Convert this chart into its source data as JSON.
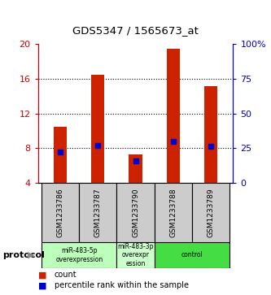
{
  "title": "GDS5347 / 1565673_at",
  "categories": [
    "GSM1233786",
    "GSM1233787",
    "GSM1233790",
    "GSM1233788",
    "GSM1233789"
  ],
  "bar_values": [
    10.5,
    16.5,
    7.3,
    19.5,
    15.2
  ],
  "blue_marker_values": [
    7.6,
    8.3,
    6.5,
    8.8,
    8.2
  ],
  "ylim_left": [
    4,
    20
  ],
  "ylim_right": [
    0,
    100
  ],
  "left_ticks": [
    4,
    8,
    12,
    16,
    20
  ],
  "right_ticks": [
    0,
    25,
    50,
    75,
    100
  ],
  "right_tick_labels": [
    "0",
    "25",
    "50",
    "75",
    "100%"
  ],
  "bar_color": "#cc2200",
  "blue_marker_color": "#0000cc",
  "protocol_groups": [
    {
      "label": "miR-483-5p\noverexpression",
      "indices": [
        0,
        1
      ],
      "color": "#bbffbb"
    },
    {
      "label": "miR-483-3p\noverexpr\nession",
      "indices": [
        2
      ],
      "color": "#ccffcc"
    },
    {
      "label": "control",
      "indices": [
        3,
        4
      ],
      "color": "#44dd44"
    }
  ],
  "legend_count_label": "count",
  "legend_percentile_label": "percentile rank within the sample",
  "protocol_label": "protocol",
  "bar_bottom": 4,
  "bar_width": 0.35,
  "label_color_left": "#cc0000",
  "label_color_right": "#0000cc",
  "grid_yticks": [
    8,
    12,
    16
  ]
}
